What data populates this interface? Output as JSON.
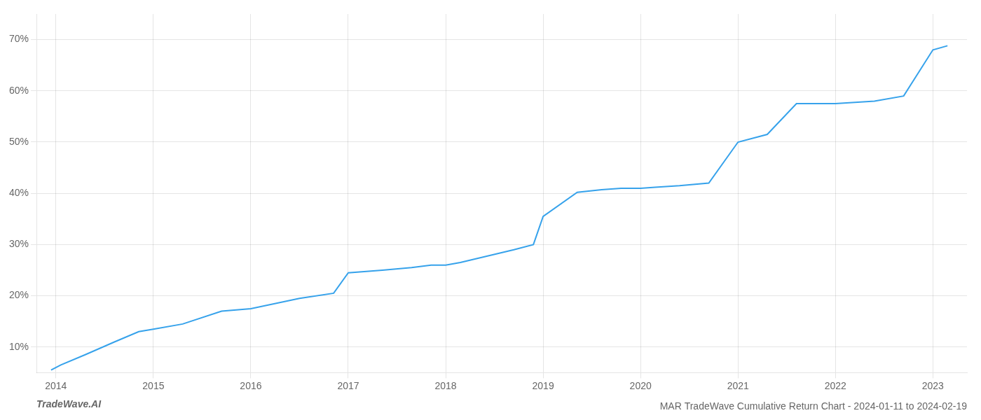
{
  "chart_data": {
    "type": "line",
    "title": "MAR TradeWave Cumulative Return Chart - 2024-01-11 to 2024-02-19",
    "annotations": [
      "TradeWave.AI"
    ],
    "x": [
      2013.95,
      2014.05,
      2014.3,
      2014.6,
      2014.85,
      2015.0,
      2015.3,
      2015.7,
      2016.0,
      2016.5,
      2016.85,
      2017.0,
      2017.35,
      2017.65,
      2017.85,
      2018.0,
      2018.15,
      2018.7,
      2018.9,
      2019.0,
      2019.35,
      2019.6,
      2019.8,
      2020.0,
      2020.15,
      2020.4,
      2020.7,
      2021.0,
      2021.3,
      2021.6,
      2022.0,
      2022.4,
      2022.7,
      2023.0,
      2023.15
    ],
    "values": [
      5.5,
      6.5,
      8.5,
      11.0,
      13.0,
      13.5,
      14.5,
      17.0,
      17.5,
      19.5,
      20.5,
      24.5,
      25.0,
      25.5,
      26.0,
      26.0,
      26.5,
      29.0,
      30.0,
      35.5,
      40.2,
      40.7,
      41.0,
      41.0,
      41.2,
      41.5,
      42.0,
      50.0,
      51.5,
      57.5,
      57.5,
      58.0,
      59.0,
      68.0,
      68.8
    ],
    "xlim": [
      2013.8,
      2023.35
    ],
    "xticks": [
      2014,
      2015,
      2016,
      2017,
      2018,
      2019,
      2020,
      2021,
      2022,
      2023
    ],
    "ylim": [
      5,
      75
    ],
    "yticks": [
      {
        "value": 10,
        "label": "10%"
      },
      {
        "value": 20,
        "label": "20%"
      },
      {
        "value": 30,
        "label": "30%"
      },
      {
        "value": 40,
        "label": "40%"
      },
      {
        "value": 50,
        "label": "50%"
      },
      {
        "value": 60,
        "label": "60%"
      },
      {
        "value": 70,
        "label": "70%"
      }
    ],
    "grid": true
  }
}
